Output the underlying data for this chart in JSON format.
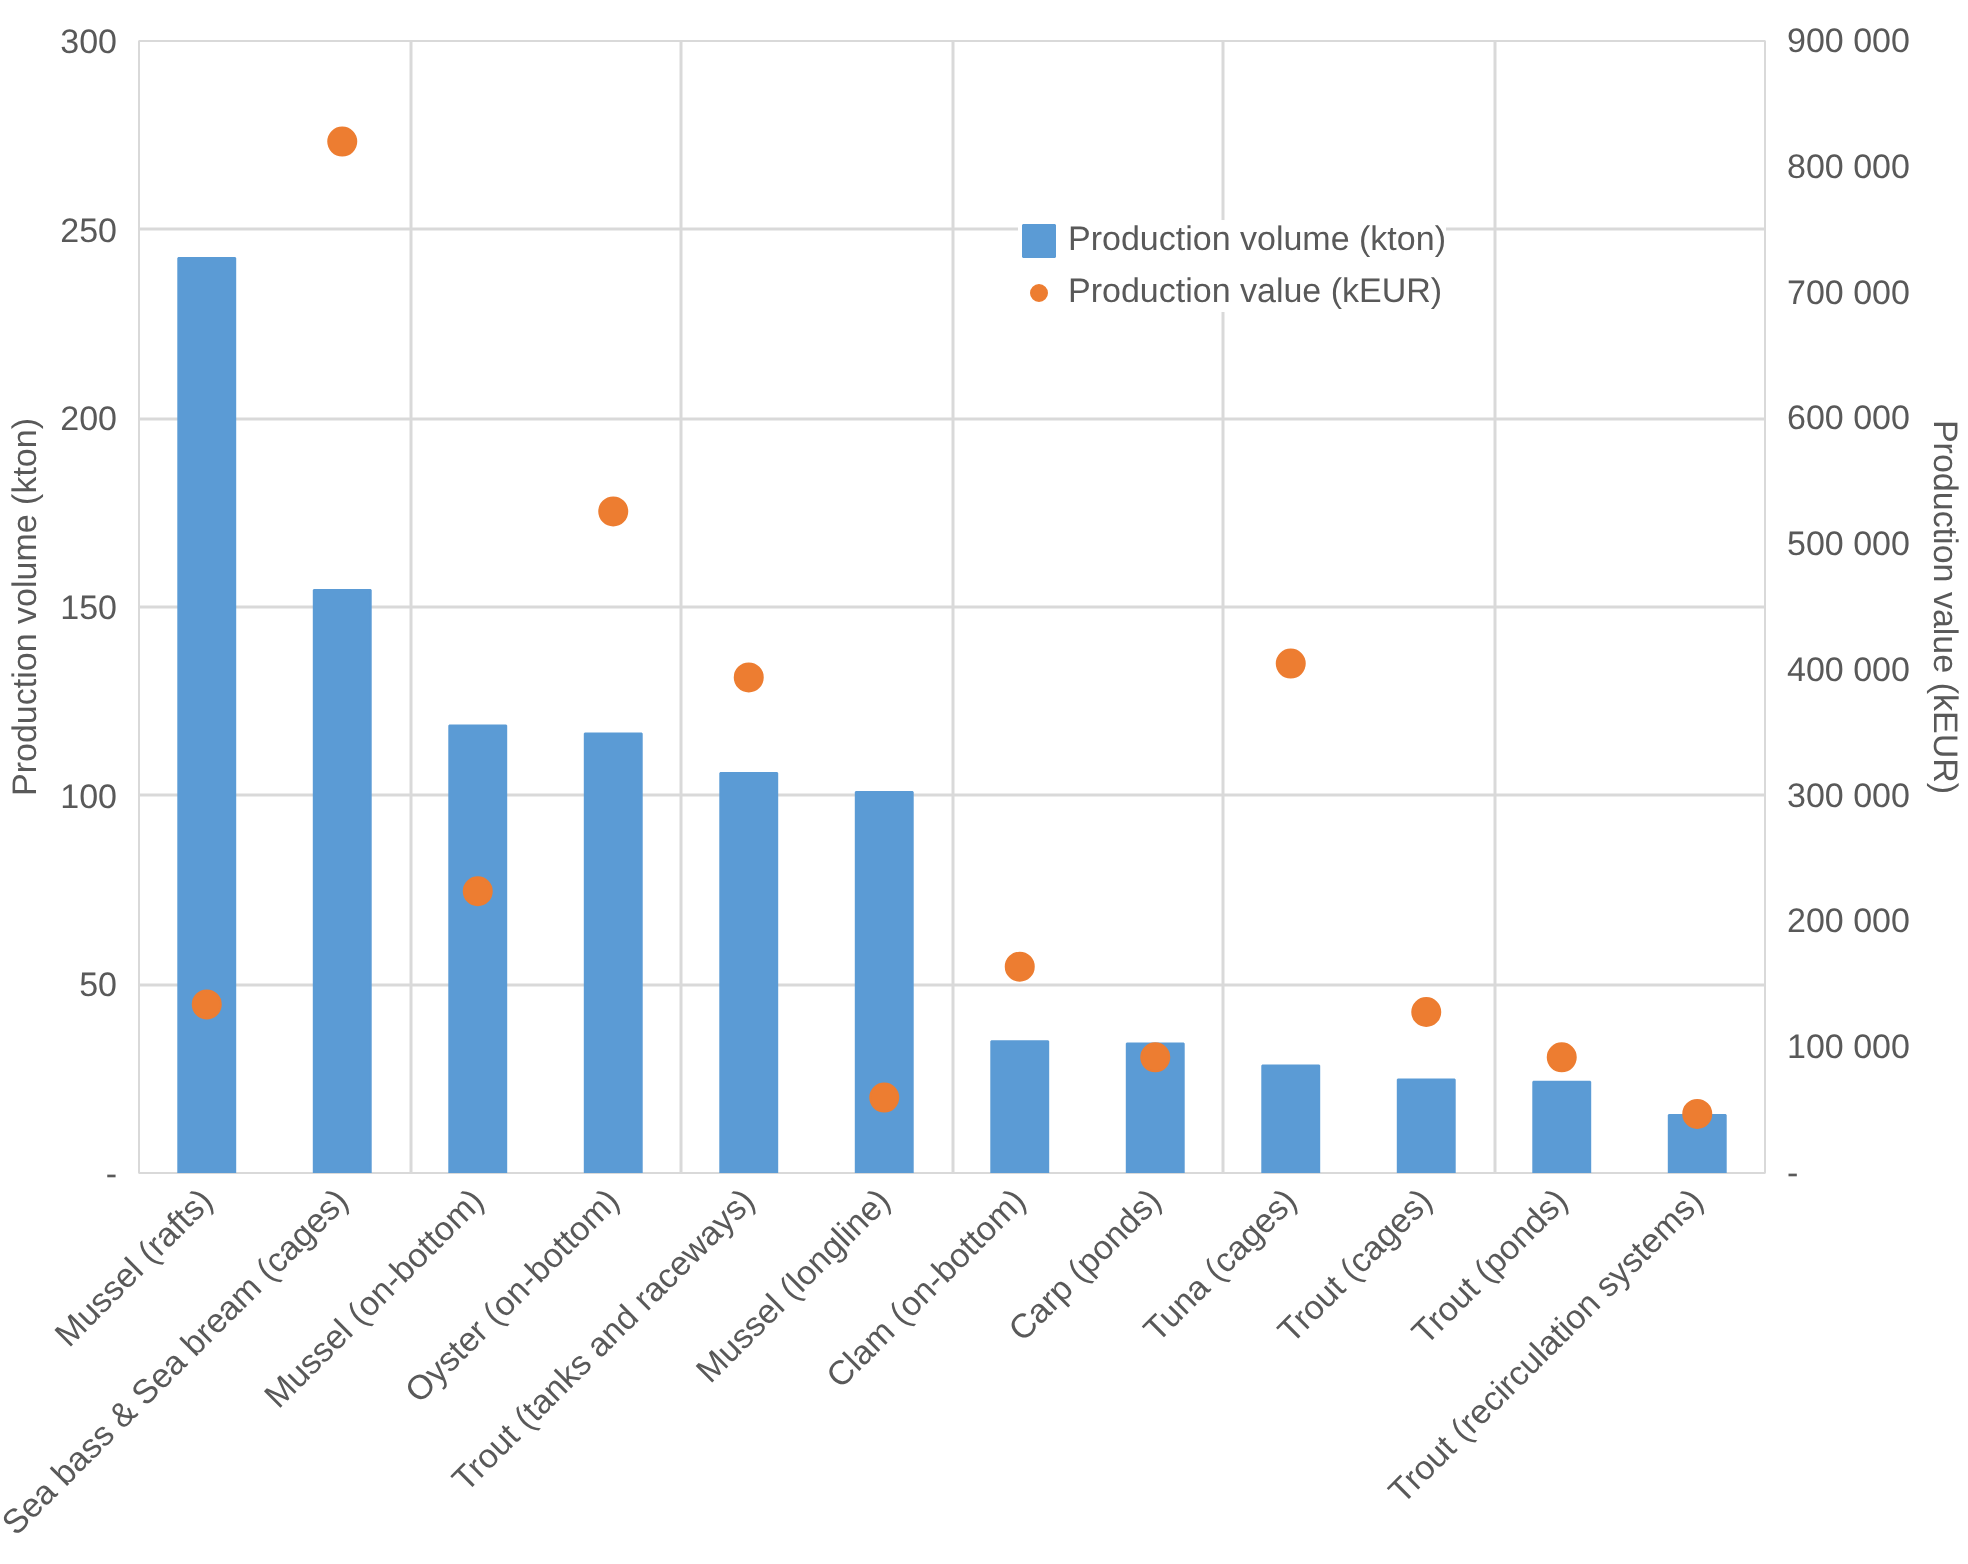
{
  "chart_data": {
    "type": "bar",
    "categories": [
      "Mussel (rafts)",
      "Sea bass & Sea bream (cages)",
      "Mussel (on-bottom)",
      "Oyster (on-bottom)",
      "Trout (tanks and raceways)",
      "Mussel (longline)",
      "Clam (on-bottom)",
      "Carp (ponds)",
      "Tuna (cages)",
      "Trout (cages)",
      "Trout (ponds)",
      "Trout (recirculation systems)"
    ],
    "series": [
      {
        "name": "Production volume (kton)",
        "color": "#5b9bd5",
        "values": [
          242.5,
          154.5,
          118.6,
          116.5,
          106,
          101,
          34.9,
          34.3,
          28.5,
          24.8,
          24.2,
          15.4
        ]
      },
      {
        "name": "Production value (kEUR)",
        "type": "scatter",
        "axis": "y2",
        "color": "#ed7d31",
        "values": [
          134000,
          820000,
          224000,
          526000,
          394000,
          60000,
          164000,
          92000,
          405000,
          128000,
          92000,
          47000
        ]
      }
    ],
    "ylabel": "Production volume (kton)",
    "y2label": "Production value (kEUR)",
    "ylim": [
      0,
      300
    ],
    "yticks": [
      {
        "value": 0,
        "label": "-"
      },
      50,
      100,
      150,
      200,
      250,
      300
    ],
    "y2lim": [
      0,
      900000
    ],
    "y2ticks": [
      {
        "value": 0,
        "label": "-"
      },
      {
        "value": 100000,
        "label": "100 000"
      },
      {
        "value": 200000,
        "label": "200 000"
      },
      {
        "value": 300000,
        "label": "300 000"
      },
      {
        "value": 400000,
        "label": "400 000"
      },
      {
        "value": 500000,
        "label": "500 000"
      },
      {
        "value": 600000,
        "label": "600 000"
      },
      {
        "value": 700000,
        "label": "700 000"
      },
      {
        "value": 800000,
        "label": "800 000"
      },
      {
        "value": 900000,
        "label": "900 000"
      }
    ],
    "grid": true,
    "legend": "top right",
    "marker": "circle"
  }
}
